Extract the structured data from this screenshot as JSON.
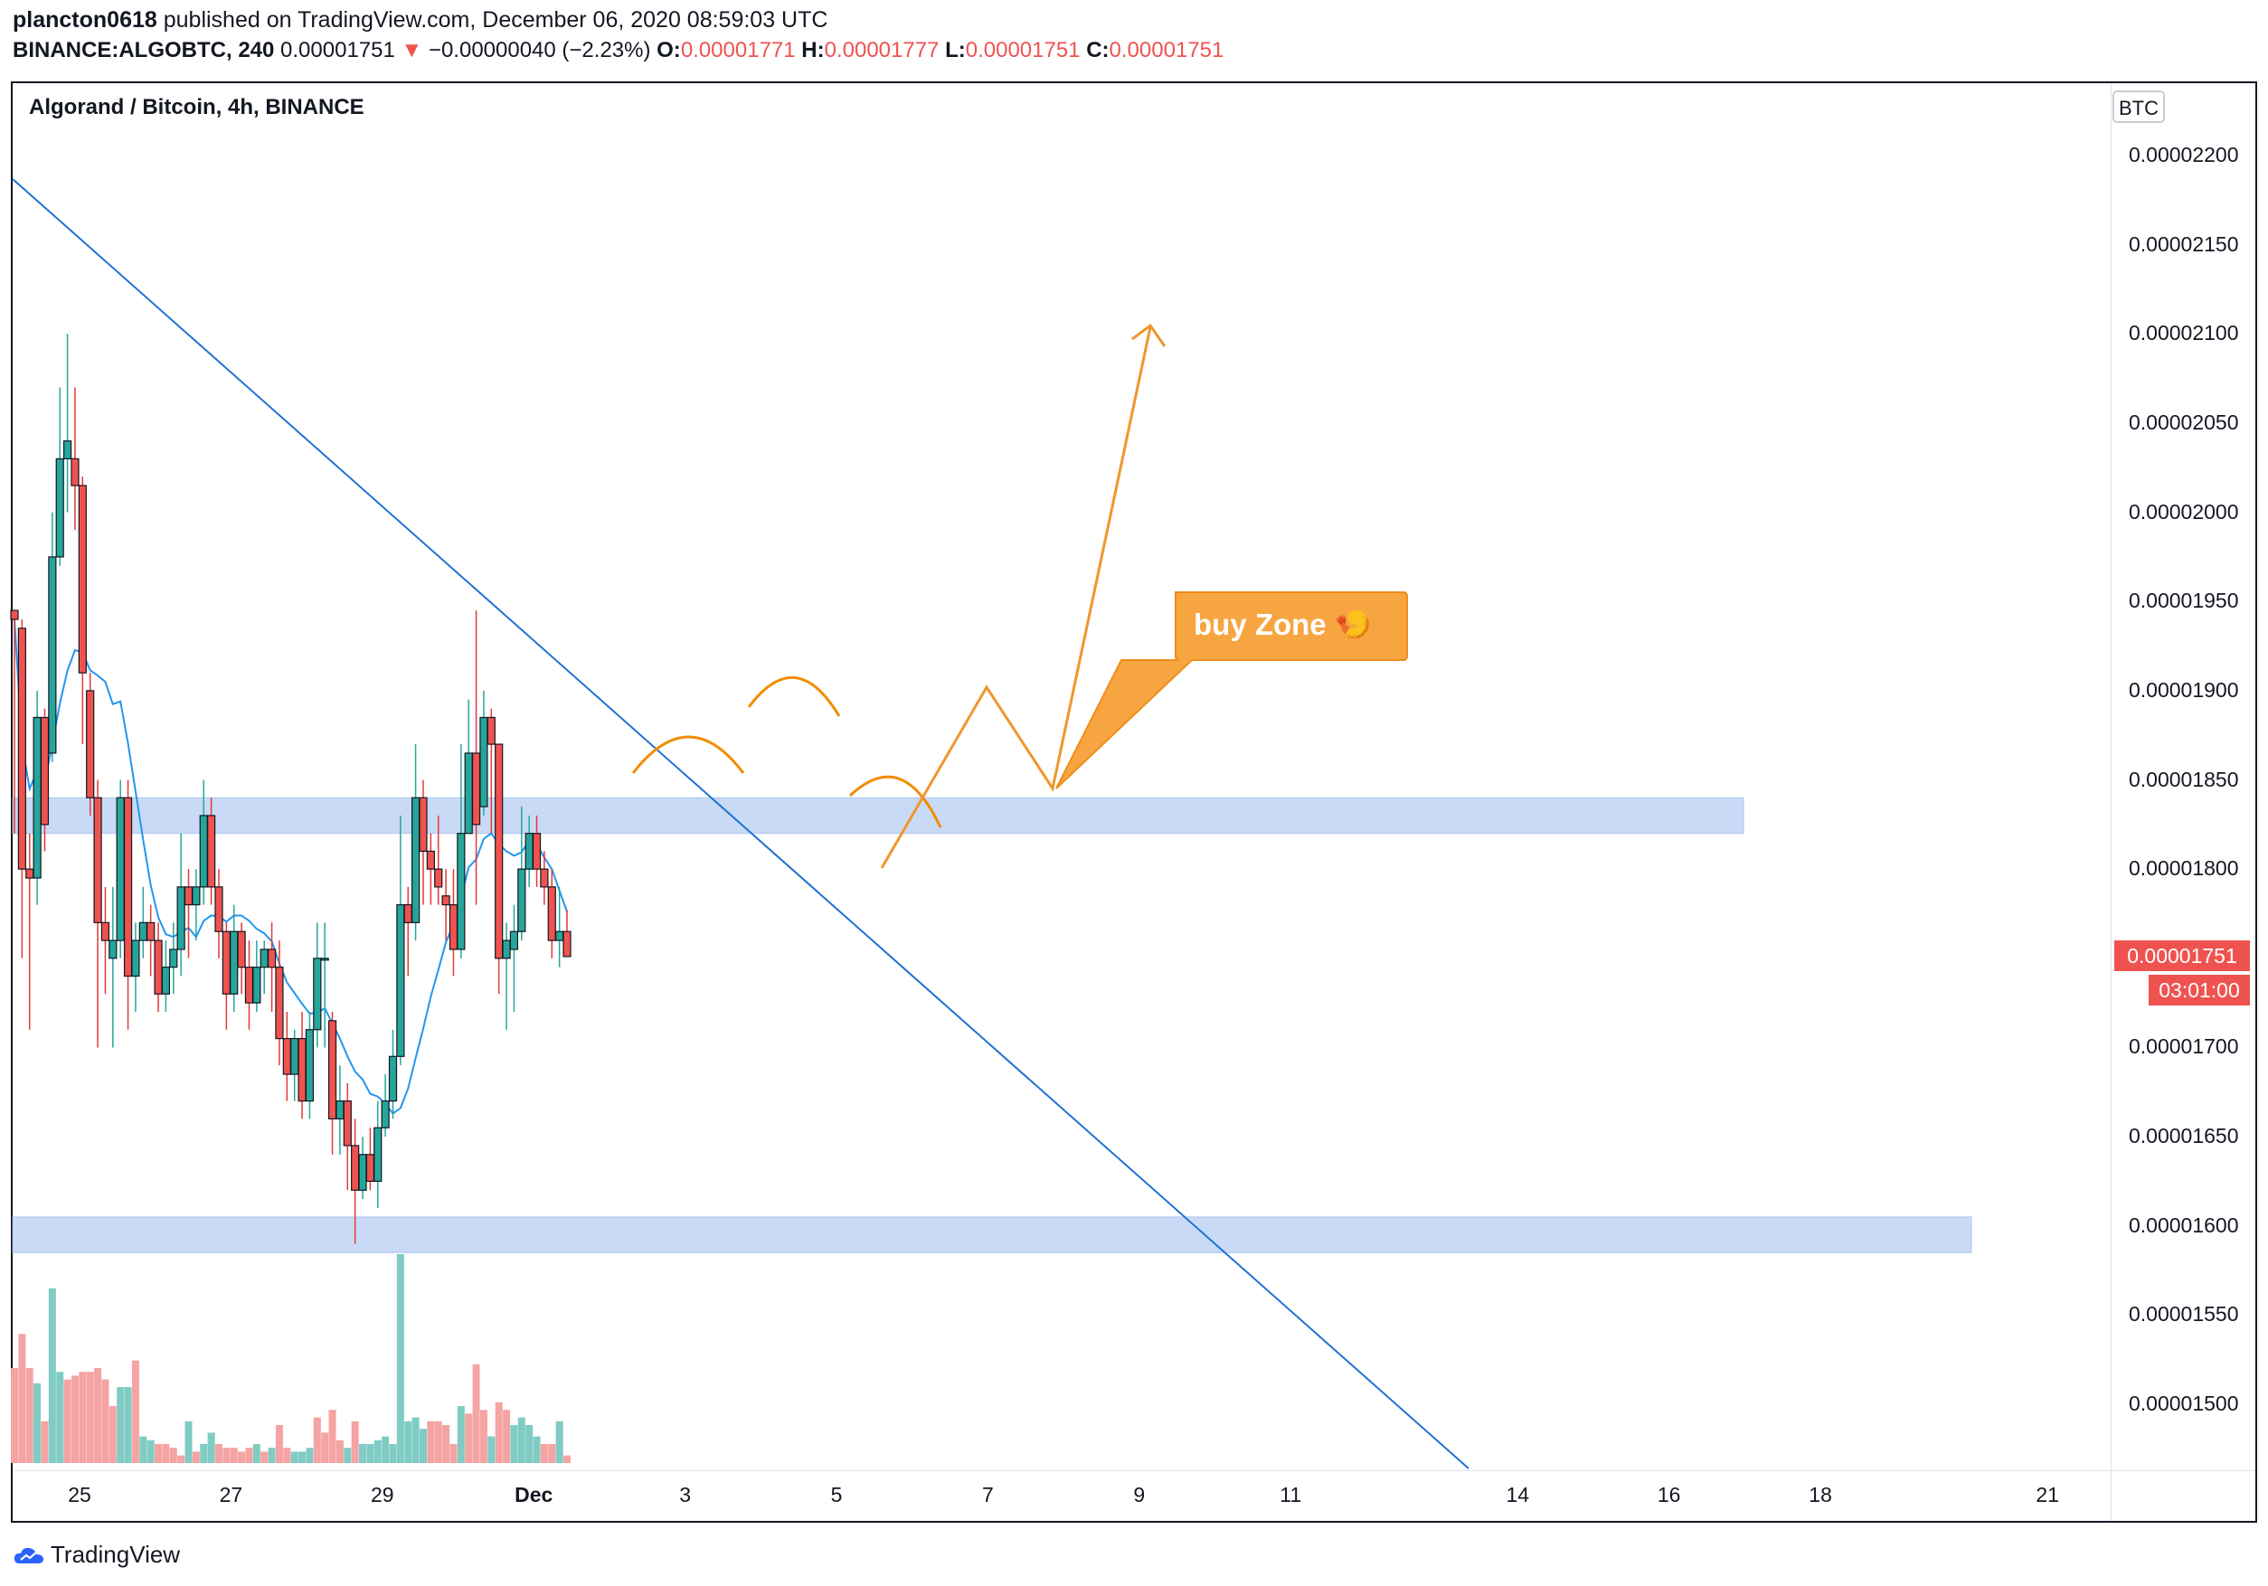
{
  "header": {
    "user": "plancton0618",
    "published_text": "published on TradingView.com, December 06, 2020 08:59:03 UTC",
    "symbol": "BINANCE:ALGOBTC, 240",
    "last": "0.00001751",
    "arrow": "▼",
    "change": "−0.00000040 (−2.23%)",
    "o_label": "O:",
    "o": "0.00001771",
    "h_label": "H:",
    "h": "0.00001777",
    "l_label": "L:",
    "l": "0.00001751",
    "c_label": "C:",
    "c": "0.00001751"
  },
  "chart_title": "Algorand / Bitcoin, 4h, BINANCE",
  "currency_button": "BTC",
  "price_label": "0.00001751",
  "countdown_label": "03:01:00",
  "brand": "TradingView",
  "annotation": "buy Zone 🍤",
  "colors": {
    "up": "#26a69a",
    "down": "#ef5350",
    "ma": "#2196f3",
    "trendline": "#1e73d2",
    "zone": "#bcd1f5",
    "projection": "#f7931a"
  },
  "chart_data": {
    "type": "candlestick",
    "title": "Algorand / Bitcoin, 4h, BINANCE",
    "ylim": [
      1.47e-05,
      2.24e-05
    ],
    "y_ticks": [
      "0.00002200",
      "0.00002150",
      "0.00002100",
      "0.00002050",
      "0.00002000",
      "0.00001950",
      "0.00001900",
      "0.00001850",
      "0.00001800",
      "0.00001750",
      "0.00001700",
      "0.00001650",
      "0.00001600",
      "0.00001550",
      "0.00001500"
    ],
    "x_ticks": [
      {
        "label": "25",
        "x": 5
      },
      {
        "label": "27",
        "x": 17
      },
      {
        "label": "29",
        "x": 29
      },
      {
        "label": "Dec",
        "x": 41,
        "bold": true
      },
      {
        "label": "3",
        "x": 53
      },
      {
        "label": "5",
        "x": 65
      },
      {
        "label": "7",
        "x": 77
      },
      {
        "label": "9",
        "x": 89
      },
      {
        "label": "11",
        "x": 101
      },
      {
        "label": "14",
        "x": 119
      },
      {
        "label": "16",
        "x": 131
      },
      {
        "label": "18",
        "x": 143
      },
      {
        "label": "21",
        "x": 161
      }
    ],
    "candles": [
      [
        0,
        1.945,
        1.94,
        1.82,
        1.945
      ],
      [
        1,
        1.935,
        1.8,
        1.75,
        1.94
      ],
      [
        2,
        1.8,
        1.795,
        1.71,
        1.82
      ],
      [
        3,
        1.795,
        1.885,
        1.78,
        1.9
      ],
      [
        4,
        1.885,
        1.825,
        1.81,
        1.89
      ],
      [
        5,
        1.865,
        1.975,
        1.86,
        2.0
      ],
      [
        6,
        1.975,
        2.03,
        1.97,
        2.07
      ],
      [
        7,
        2.03,
        2.04,
        2.0,
        2.1
      ],
      [
        8,
        2.03,
        2.015,
        1.99,
        2.07
      ],
      [
        9,
        2.015,
        1.91,
        1.87,
        2.02
      ],
      [
        10,
        1.9,
        1.84,
        1.83,
        1.91
      ],
      [
        11,
        1.84,
        1.77,
        1.7,
        1.85
      ],
      [
        12,
        1.77,
        1.76,
        1.73,
        1.79
      ],
      [
        13,
        1.75,
        1.76,
        1.7,
        1.79
      ],
      [
        14,
        1.76,
        1.84,
        1.75,
        1.85
      ],
      [
        15,
        1.84,
        1.74,
        1.71,
        1.85
      ],
      [
        16,
        1.74,
        1.76,
        1.72,
        1.77
      ],
      [
        17,
        1.76,
        1.77,
        1.75,
        1.79
      ],
      [
        18,
        1.77,
        1.76,
        1.74,
        1.78
      ],
      [
        19,
        1.76,
        1.73,
        1.72,
        1.77
      ],
      [
        20,
        1.73,
        1.745,
        1.72,
        1.76
      ],
      [
        21,
        1.745,
        1.755,
        1.73,
        1.77
      ],
      [
        22,
        1.755,
        1.79,
        1.74,
        1.82
      ],
      [
        23,
        1.79,
        1.78,
        1.75,
        1.8
      ],
      [
        24,
        1.78,
        1.79,
        1.76,
        1.8
      ],
      [
        25,
        1.79,
        1.83,
        1.78,
        1.85
      ],
      [
        26,
        1.83,
        1.79,
        1.78,
        1.84
      ],
      [
        27,
        1.79,
        1.765,
        1.75,
        1.8
      ],
      [
        28,
        1.765,
        1.73,
        1.71,
        1.77
      ],
      [
        29,
        1.73,
        1.765,
        1.72,
        1.78
      ],
      [
        30,
        1.765,
        1.745,
        1.73,
        1.77
      ],
      [
        31,
        1.745,
        1.725,
        1.71,
        1.76
      ],
      [
        32,
        1.725,
        1.745,
        1.72,
        1.76
      ],
      [
        33,
        1.745,
        1.755,
        1.73,
        1.76
      ],
      [
        34,
        1.755,
        1.745,
        1.72,
        1.77
      ],
      [
        35,
        1.745,
        1.705,
        1.69,
        1.76
      ],
      [
        36,
        1.705,
        1.685,
        1.67,
        1.72
      ],
      [
        37,
        1.685,
        1.705,
        1.67,
        1.71
      ],
      [
        38,
        1.705,
        1.67,
        1.66,
        1.72
      ],
      [
        39,
        1.67,
        1.71,
        1.66,
        1.72
      ],
      [
        40,
        1.71,
        1.75,
        1.7,
        1.77
      ],
      [
        41,
        1.75,
        1.75,
        1.7,
        1.77
      ],
      [
        42,
        1.715,
        1.66,
        1.64,
        1.72
      ],
      [
        43,
        1.66,
        1.67,
        1.64,
        1.69
      ],
      [
        44,
        1.67,
        1.645,
        1.62,
        1.68
      ],
      [
        45,
        1.645,
        1.62,
        1.59,
        1.66
      ],
      [
        46,
        1.62,
        1.64,
        1.615,
        1.65
      ],
      [
        47,
        1.64,
        1.625,
        1.62,
        1.655
      ],
      [
        48,
        1.625,
        1.655,
        1.61,
        1.67
      ],
      [
        49,
        1.655,
        1.67,
        1.65,
        1.685
      ],
      [
        50,
        1.67,
        1.695,
        1.66,
        1.71
      ],
      [
        51,
        1.695,
        1.78,
        1.69,
        1.83
      ],
      [
        52,
        1.78,
        1.77,
        1.74,
        1.79
      ],
      [
        53,
        1.77,
        1.84,
        1.76,
        1.87
      ],
      [
        54,
        1.84,
        1.81,
        1.78,
        1.85
      ],
      [
        55,
        1.81,
        1.8,
        1.78,
        1.82
      ],
      [
        56,
        1.8,
        1.79,
        1.78,
        1.83
      ],
      [
        57,
        1.785,
        1.78,
        1.76,
        1.8
      ],
      [
        58,
        1.78,
        1.755,
        1.74,
        1.8
      ],
      [
        59,
        1.755,
        1.82,
        1.75,
        1.87
      ],
      [
        60,
        1.82,
        1.865,
        1.82,
        1.895
      ],
      [
        61,
        1.865,
        1.825,
        1.78,
        1.945
      ],
      [
        62,
        1.835,
        1.885,
        1.83,
        1.9
      ],
      [
        63,
        1.885,
        1.87,
        1.82,
        1.89
      ],
      [
        64,
        1.87,
        1.75,
        1.73,
        1.87
      ],
      [
        65,
        1.75,
        1.76,
        1.71,
        1.77
      ],
      [
        66,
        1.755,
        1.765,
        1.72,
        1.78
      ],
      [
        67,
        1.765,
        1.8,
        1.76,
        1.835
      ],
      [
        68,
        1.8,
        1.82,
        1.79,
        1.83
      ],
      [
        69,
        1.82,
        1.8,
        1.79,
        1.83
      ],
      [
        70,
        1.8,
        1.79,
        1.78,
        1.81
      ],
      [
        71,
        1.79,
        1.76,
        1.75,
        1.8
      ],
      [
        72,
        1.76,
        1.765,
        1.745,
        1.79
      ],
      [
        73,
        1.765,
        1.751,
        1.751,
        1.777
      ]
    ],
    "volume": [
      [
        0,
        0.25,
        "d"
      ],
      [
        1,
        0.34,
        "d"
      ],
      [
        2,
        0.25,
        "d"
      ],
      [
        3,
        0.21,
        "u"
      ],
      [
        4,
        0.11,
        "d"
      ],
      [
        5,
        0.46,
        "u"
      ],
      [
        6,
        0.24,
        "u"
      ],
      [
        7,
        0.22,
        "d"
      ],
      [
        8,
        0.23,
        "d"
      ],
      [
        9,
        0.24,
        "d"
      ],
      [
        10,
        0.24,
        "d"
      ],
      [
        11,
        0.25,
        "d"
      ],
      [
        12,
        0.22,
        "d"
      ],
      [
        13,
        0.15,
        "d"
      ],
      [
        14,
        0.2,
        "u"
      ],
      [
        15,
        0.2,
        "u"
      ],
      [
        16,
        0.27,
        "d"
      ],
      [
        17,
        0.07,
        "u"
      ],
      [
        18,
        0.06,
        "u"
      ],
      [
        19,
        0.05,
        "d"
      ],
      [
        20,
        0.05,
        "d"
      ],
      [
        21,
        0.04,
        "d"
      ],
      [
        22,
        0.02,
        "d"
      ],
      [
        23,
        0.11,
        "u"
      ],
      [
        24,
        0.03,
        "d"
      ],
      [
        25,
        0.05,
        "u"
      ],
      [
        26,
        0.08,
        "u"
      ],
      [
        27,
        0.05,
        "d"
      ],
      [
        28,
        0.04,
        "d"
      ],
      [
        29,
        0.04,
        "d"
      ],
      [
        30,
        0.03,
        "d"
      ],
      [
        31,
        0.04,
        "d"
      ],
      [
        32,
        0.05,
        "u"
      ],
      [
        33,
        0.03,
        "d"
      ],
      [
        34,
        0.04,
        "u"
      ],
      [
        35,
        0.1,
        "d"
      ],
      [
        36,
        0.04,
        "d"
      ],
      [
        37,
        0.03,
        "u"
      ],
      [
        38,
        0.03,
        "u"
      ],
      [
        39,
        0.04,
        "u"
      ],
      [
        40,
        0.12,
        "d"
      ],
      [
        41,
        0.08,
        "d"
      ],
      [
        42,
        0.14,
        "d"
      ],
      [
        43,
        0.06,
        "d"
      ],
      [
        44,
        0.04,
        "u"
      ],
      [
        45,
        0.11,
        "d"
      ],
      [
        46,
        0.05,
        "u"
      ],
      [
        47,
        0.05,
        "u"
      ],
      [
        48,
        0.06,
        "u"
      ],
      [
        49,
        0.07,
        "u"
      ],
      [
        50,
        0.05,
        "u"
      ],
      [
        51,
        0.55,
        "u"
      ],
      [
        52,
        0.11,
        "u"
      ],
      [
        53,
        0.12,
        "u"
      ],
      [
        54,
        0.09,
        "u"
      ],
      [
        55,
        0.11,
        "d"
      ],
      [
        56,
        0.11,
        "d"
      ],
      [
        57,
        0.1,
        "d"
      ],
      [
        58,
        0.05,
        "d"
      ],
      [
        59,
        0.15,
        "u"
      ],
      [
        60,
        0.13,
        "d"
      ],
      [
        61,
        0.26,
        "d"
      ],
      [
        62,
        0.14,
        "d"
      ],
      [
        63,
        0.07,
        "u"
      ],
      [
        64,
        0.16,
        "d"
      ],
      [
        65,
        0.14,
        "d"
      ],
      [
        66,
        0.1,
        "u"
      ],
      [
        67,
        0.12,
        "u"
      ],
      [
        68,
        0.1,
        "u"
      ],
      [
        69,
        0.07,
        "u"
      ],
      [
        70,
        0.05,
        "d"
      ],
      [
        71,
        0.05,
        "d"
      ],
      [
        72,
        0.11,
        "u"
      ],
      [
        73,
        0.02,
        "d"
      ]
    ]
  }
}
